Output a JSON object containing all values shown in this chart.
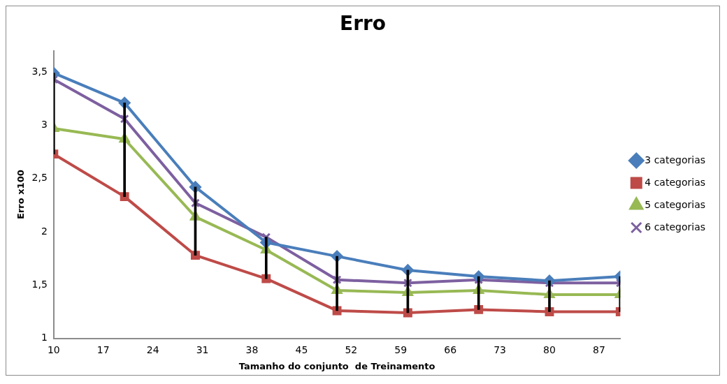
{
  "chart_data": {
    "type": "line",
    "title": "Erro",
    "xlabel": "Tamanho do conjunto  de Treinamento",
    "ylabel": "Erro x100",
    "x": [
      10,
      20,
      30,
      40,
      50,
      60,
      70,
      80,
      90
    ],
    "xlim": [
      10,
      90
    ],
    "xticks": [
      10,
      17,
      24,
      31,
      38,
      45,
      52,
      59,
      66,
      73,
      80,
      87
    ],
    "ylim": [
      1,
      3.7
    ],
    "yticks": [
      1,
      {
        "value": 1.5,
        "label": "1,5"
      },
      2,
      {
        "value": 2.5,
        "label": "2,5"
      },
      3,
      {
        "value": 3.5,
        "label": "3,5"
      }
    ],
    "grid": false,
    "legend": "right",
    "line_style": "solid",
    "series": [
      {
        "name": "3 categorias",
        "color": "#4a7ebb",
        "marker": "diamond",
        "values": [
          3.49,
          3.21,
          2.42,
          1.9,
          1.77,
          1.64,
          1.58,
          1.54,
          1.58
        ]
      },
      {
        "name": "4 categorias",
        "color": "#be4b48",
        "marker": "square",
        "values": [
          2.73,
          2.33,
          1.78,
          1.56,
          1.26,
          1.24,
          1.27,
          1.25,
          1.25
        ]
      },
      {
        "name": "5 categorias",
        "color": "#98b954",
        "marker": "triangle",
        "values": [
          2.97,
          2.87,
          2.14,
          1.83,
          1.45,
          1.43,
          1.45,
          1.41,
          1.41
        ]
      },
      {
        "name": "6 categorias",
        "color": "#7d60a0",
        "marker": "cross",
        "values": [
          3.43,
          3.06,
          2.27,
          1.95,
          1.55,
          1.52,
          1.55,
          1.52,
          1.52
        ]
      },
      {
        "type": "bar",
        "color": "#000000",
        "base": [
          2.73,
          2.33,
          1.78,
          1.56,
          1.26,
          1.24,
          1.27,
          1.25,
          1.25
        ],
        "values": [
          0.76,
          0.88,
          0.64,
          0.39,
          0.51,
          0.4,
          0.31,
          0.29,
          0.33
        ]
      }
    ]
  }
}
